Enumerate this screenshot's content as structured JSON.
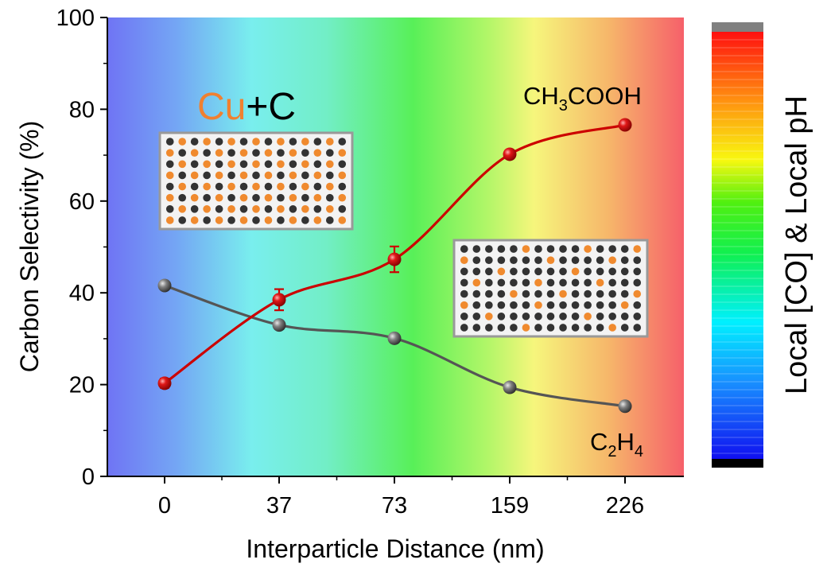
{
  "chart_data": {
    "type": "line",
    "xlabel": "Interparticle Distance (nm)",
    "ylabel": "Carbon Selectivity (%)",
    "ylim": [
      0,
      100
    ],
    "yticks": [
      "0",
      "20",
      "40",
      "60",
      "80",
      "100"
    ],
    "categories": [
      "0",
      "37",
      "73",
      "159",
      "226"
    ],
    "series": [
      {
        "name": "CH3COOH",
        "label": {
          "base": "CH",
          "sub1": "3",
          "rest": "COOH"
        },
        "color": "#cc0000",
        "values": [
          20.3,
          38.5,
          47.3,
          70.2,
          76.6
        ],
        "errors": [
          1.0,
          2.3,
          2.8,
          0.6,
          0.6
        ]
      },
      {
        "name": "C2H4",
        "label": {
          "base": "C",
          "sub1": "2",
          "mid": "H",
          "sub2": "4"
        },
        "color": "#555555",
        "values": [
          41.6,
          33.0,
          30.1,
          19.4,
          15.3
        ],
        "errors": [
          0.4,
          0.4,
          0.4,
          0.4,
          0.4
        ]
      }
    ],
    "annotation": {
      "part1": "Cu",
      "part2": "+C",
      "part1_color": "#f08030",
      "part2_color": "#000000"
    },
    "colorbar_label": "Local [CO] & Local pH",
    "background": "rainbow gradient (blue to red, left to right)",
    "insets": [
      "dense Cu/C particle array",
      "sparse Cu/C particle array"
    ],
    "particle_colors": {
      "cu": "#f08a2e",
      "c": "#333333"
    },
    "grid": false,
    "legend": "none"
  }
}
